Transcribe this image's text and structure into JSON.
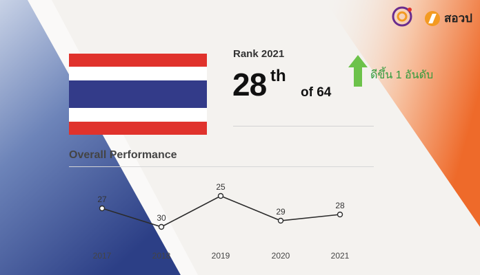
{
  "rank": {
    "label": "Rank 2021",
    "number": "28",
    "suffix": "th",
    "of_total": "of 64",
    "improvement_text": "ดีขึ้น 1 อันดับ",
    "improvement_icon": "up-arrow-icon"
  },
  "section_title": "Overall Performance",
  "brand": {
    "name": "สอวป",
    "logo_icon": "brand-logo-icon",
    "emblem_icon": "emblem-logo-icon"
  },
  "colors": {
    "flag_red": "#e0322c",
    "flag_blue": "#333b89",
    "improve_green": "#2f9a3b",
    "arrow_green": "#6cc24a",
    "accent_orange": "#f07a3a",
    "accent_blue": "#3a5196"
  },
  "chart_data": {
    "type": "line",
    "title": "Overall Performance",
    "categories": [
      "2017",
      "2018",
      "2019",
      "2020",
      "2021"
    ],
    "series": [
      {
        "name": "Rank",
        "values": [
          27,
          30,
          25,
          29,
          28
        ]
      }
    ],
    "data_labels": [
      "27",
      "30",
      "25",
      "29",
      "28"
    ],
    "y_inverted": true,
    "ylim": [
      31,
      24
    ],
    "xlabel": "",
    "ylabel": ""
  }
}
